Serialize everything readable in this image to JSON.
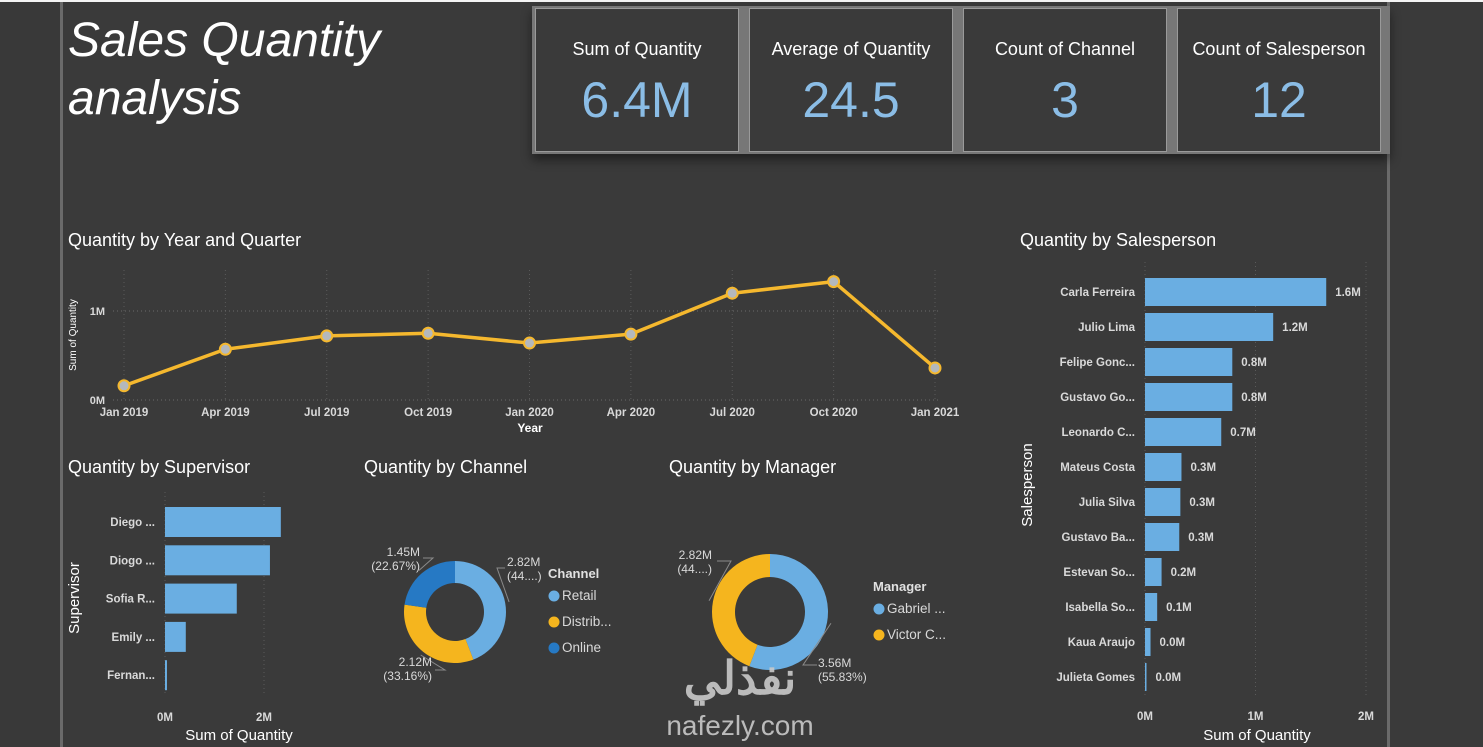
{
  "report": {
    "title": "Sales Quantity analysis"
  },
  "kpis": [
    {
      "label": "Sum of Quantity",
      "value": "6.4M"
    },
    {
      "label": "Average of Quantity",
      "value": "24.5"
    },
    {
      "label": "Count of Channel",
      "value": "3"
    },
    {
      "label": "Count of Salesperson",
      "value": "12"
    }
  ],
  "colors": {
    "bar": "#6aaee2",
    "line": "#f5b82e",
    "marker_fill": "#b4b8bc",
    "retail": "#6aaee2",
    "distributor": "#f5b51e",
    "online": "#2679c4",
    "kpi_value": "#8bbde6"
  },
  "watermark": {
    "arabic": "نفذلي",
    "latin": "nafezly.com"
  },
  "chart_data": [
    {
      "id": "year-quarter",
      "type": "line",
      "title": "Quantity by Year and Quarter",
      "xlabel": "Year",
      "ylabel": "Sum of Quantity",
      "x": [
        "Jan 2019",
        "Apr 2019",
        "Jul 2019",
        "Oct 2019",
        "Jan 2020",
        "Apr 2020",
        "Jul 2020",
        "Oct 2020",
        "Jan 2021"
      ],
      "series": [
        {
          "name": "Sum of Quantity",
          "values": [
            0.16,
            0.57,
            0.72,
            0.75,
            0.64,
            0.74,
            1.2,
            1.33,
            0.36
          ]
        }
      ],
      "units": "M",
      "ylim": [
        0,
        1.4
      ],
      "yticks": [
        {
          "value": 0,
          "label": "0M"
        },
        {
          "value": 1,
          "label": "1M"
        }
      ],
      "grid": true
    },
    {
      "id": "supervisor",
      "type": "bar",
      "orientation": "horizontal",
      "title": "Quantity by Supervisor",
      "xlabel": "Sum of Quantity",
      "ylabel": "Supervisor",
      "categories": [
        "Diego ...",
        "Diogo ...",
        "Sofia R...",
        "Emily ...",
        "Fernan..."
      ],
      "values": [
        2.34,
        2.12,
        1.45,
        0.42,
        0.04
      ],
      "units": "M",
      "xlim": [
        0,
        2.3
      ],
      "xticks": [
        {
          "value": 0,
          "label": "0M"
        },
        {
          "value": 2,
          "label": "2M"
        }
      ],
      "grid": true
    },
    {
      "id": "channel",
      "type": "pie",
      "donut": true,
      "title": "Quantity by Channel",
      "legend_title": "Channel",
      "legend_position": "right",
      "slices": [
        {
          "name": "Retail",
          "legend": "Retail",
          "value": 2.82,
          "percent": 44.17,
          "label": "2.82M",
          "sublabel": "(44....)",
          "color_key": "retail"
        },
        {
          "name": "Distributor",
          "legend": "Distrib...",
          "value": 2.12,
          "percent": 33.16,
          "label": "2.12M",
          "sublabel": "(33.16%)",
          "color_key": "distributor"
        },
        {
          "name": "Online",
          "legend": "Online",
          "value": 1.45,
          "percent": 22.67,
          "label": "1.45M",
          "sublabel": "(22.67%)",
          "color_key": "online"
        }
      ]
    },
    {
      "id": "manager",
      "type": "pie",
      "donut": true,
      "title": "Quantity by Manager",
      "legend_title": "Manager",
      "legend_position": "right",
      "slices": [
        {
          "name": "Gabriel",
          "legend": "Gabriel ...",
          "value": 3.56,
          "percent": 55.83,
          "label": "3.56M",
          "sublabel": "(55.83%)",
          "color_key": "retail"
        },
        {
          "name": "Victor",
          "legend": "Victor C...",
          "value": 2.82,
          "percent": 44.17,
          "label": "2.82M",
          "sublabel": "(44....)",
          "color_key": "distributor"
        }
      ]
    },
    {
      "id": "salesperson",
      "type": "bar",
      "orientation": "horizontal",
      "title": "Quantity by Salesperson",
      "xlabel": "Sum of Quantity",
      "ylabel": "Salesperson",
      "categories": [
        "Carla Ferreira",
        "Julio Lima",
        "Felipe Gonc...",
        "Gustavo Go...",
        "Leonardo C...",
        "Mateus Costa",
        "Julia Silva",
        "Gustavo Ba...",
        "Estevan So...",
        "Isabella So...",
        "Kaua Araujo",
        "Julieta Gomes"
      ],
      "values": [
        1.64,
        1.16,
        0.79,
        0.79,
        0.69,
        0.33,
        0.32,
        0.31,
        0.15,
        0.11,
        0.05,
        0.01
      ],
      "data_labels": [
        "1.6M",
        "1.2M",
        "0.8M",
        "0.8M",
        "0.7M",
        "0.3M",
        "0.3M",
        "0.3M",
        "0.2M",
        "0.1M",
        "0.0M",
        "0.0M"
      ],
      "units": "M",
      "xlim": [
        0,
        2
      ],
      "xticks": [
        {
          "value": 0,
          "label": "0M"
        },
        {
          "value": 1,
          "label": "1M"
        },
        {
          "value": 2,
          "label": "2M"
        }
      ],
      "grid": true
    }
  ]
}
